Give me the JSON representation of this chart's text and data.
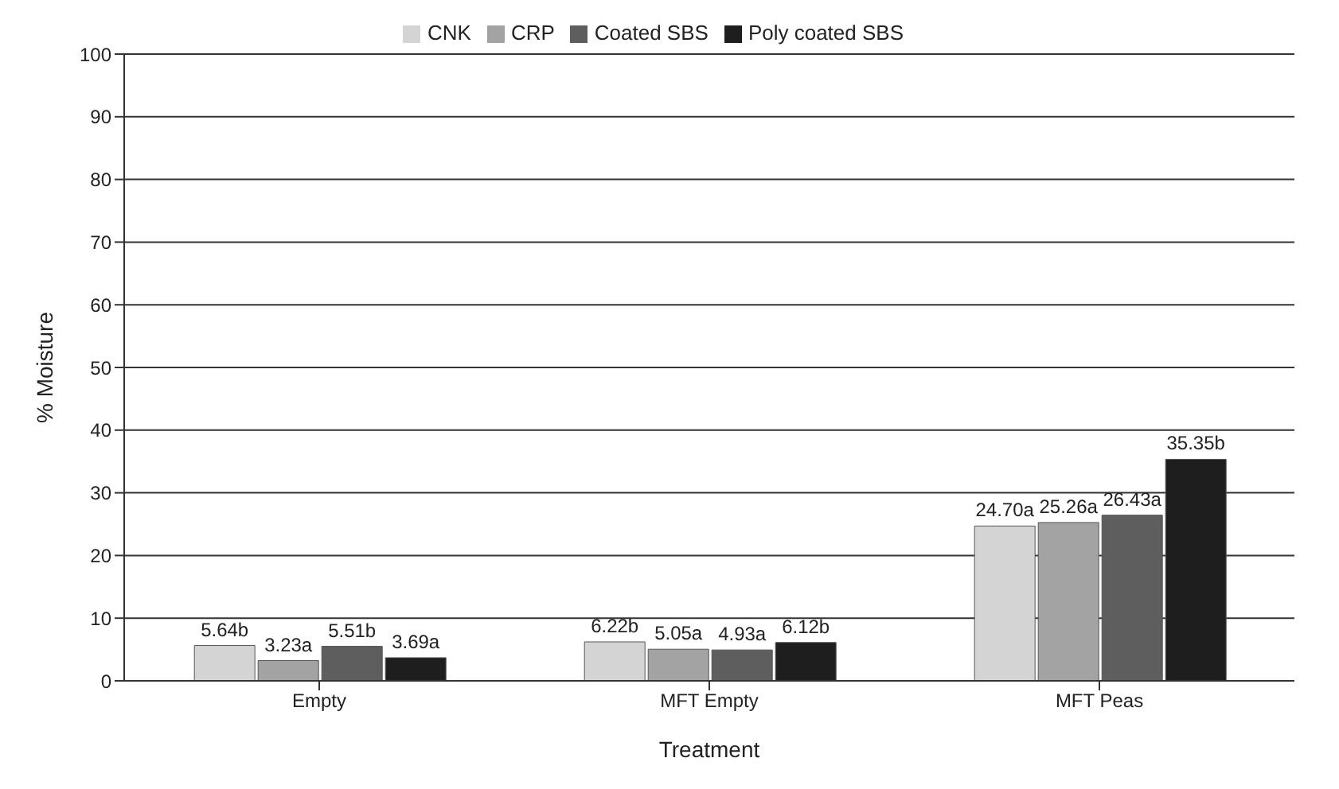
{
  "chart_data": {
    "type": "bar",
    "xlabel": "Treatment",
    "ylabel": "% Moisture",
    "categories": [
      "Empty",
      "MFT Empty",
      "MFT Peas"
    ],
    "series": [
      {
        "name": "CNK",
        "color": "#d4d4d4",
        "values": [
          5.64,
          6.22,
          24.7
        ],
        "value_labels": [
          "5.64b",
          "6.22b",
          "24.70a"
        ]
      },
      {
        "name": "CRP",
        "color": "#a3a3a3",
        "values": [
          3.23,
          5.05,
          25.26
        ],
        "value_labels": [
          "3.23a",
          "5.05a",
          "25.26a"
        ]
      },
      {
        "name": "Coated SBS",
        "color": "#5e5e5e",
        "values": [
          5.51,
          4.93,
          26.43
        ],
        "value_labels": [
          "5.51b",
          "4.93a",
          "26.43a"
        ]
      },
      {
        "name": "Poly coated SBS",
        "color": "#1e1e1e",
        "values": [
          3.69,
          6.12,
          35.35
        ],
        "value_labels": [
          "3.69a",
          "6.12b",
          "35.35b"
        ]
      }
    ],
    "ylim": [
      0,
      100
    ],
    "yticks": [
      0,
      10,
      20,
      30,
      40,
      50,
      60,
      70,
      80,
      90,
      100
    ],
    "grid": "y",
    "legend": "top"
  }
}
